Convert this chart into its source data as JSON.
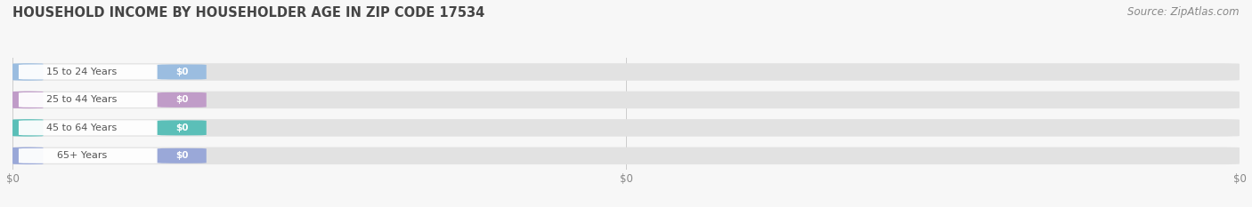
{
  "title": "HOUSEHOLD INCOME BY HOUSEHOLDER AGE IN ZIP CODE 17534",
  "source_text": "Source: ZipAtlas.com",
  "categories": [
    "15 to 24 Years",
    "25 to 44 Years",
    "45 to 64 Years",
    "65+ Years"
  ],
  "values": [
    0,
    0,
    0,
    0
  ],
  "bar_colors": [
    "#9bbde0",
    "#c09cc8",
    "#5bbfb8",
    "#9aa8d8"
  ],
  "background_color": "#f7f7f7",
  "bar_bg_color": "#e4e4e4",
  "white_label_color": "#ffffff",
  "title_fontsize": 10.5,
  "source_fontsize": 8.5,
  "tick_fontsize": 8.5,
  "tick_color": "#888888",
  "grid_color": "#cccccc",
  "title_color": "#444444",
  "source_color": "#888888",
  "label_text_color": "#555555",
  "value_text_color": "#ffffff",
  "figure_width": 14.06,
  "figure_height": 2.33,
  "dpi": 100
}
